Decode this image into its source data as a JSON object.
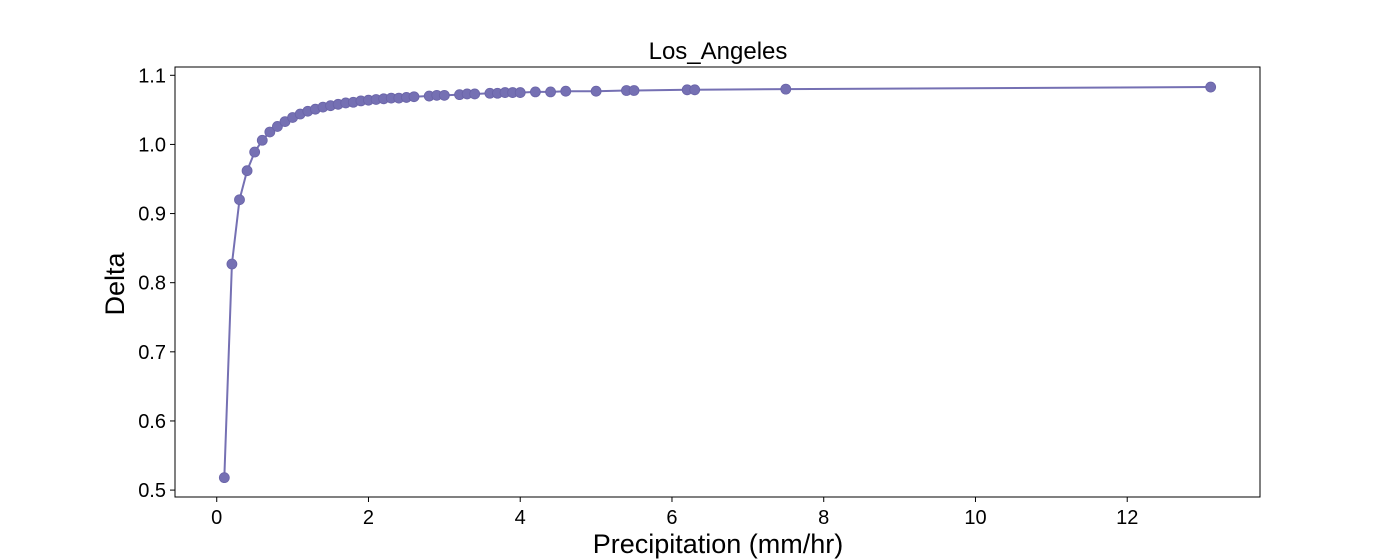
{
  "chart_data": {
    "type": "line",
    "title": "Los_Angeles",
    "xlabel": "Precipitation (mm/hr)",
    "ylabel": "Delta",
    "xlim": [
      -0.55,
      13.75
    ],
    "ylim": [
      0.49,
      1.112
    ],
    "xticks": [
      0,
      2,
      4,
      6,
      8,
      10,
      12
    ],
    "yticks": [
      0.5,
      0.6,
      0.7,
      0.8,
      0.9,
      1.0,
      1.1
    ],
    "ytick_labels": [
      "0.5",
      "0.6",
      "0.7",
      "0.8",
      "0.9",
      "1.0",
      "1.1"
    ],
    "grid": false,
    "color": "#7570b3",
    "series": [
      {
        "x": [
          0.1,
          0.2,
          0.3,
          0.4,
          0.5,
          0.6,
          0.7,
          0.8,
          0.9,
          1.0,
          1.1,
          1.2,
          1.3,
          1.4,
          1.5,
          1.6,
          1.7,
          1.8,
          1.9,
          2.0,
          2.1,
          2.2,
          2.3,
          2.4,
          2.5,
          2.6,
          2.8,
          2.9,
          3.0,
          3.2,
          3.3,
          3.4,
          3.6,
          3.7,
          3.8,
          3.9,
          4.0,
          4.2,
          4.4,
          4.6,
          5.0,
          5.4,
          5.5,
          6.2,
          6.3,
          7.5,
          13.1
        ],
        "y": [
          0.518,
          0.827,
          0.92,
          0.962,
          0.989,
          1.006,
          1.018,
          1.026,
          1.033,
          1.039,
          1.044,
          1.048,
          1.051,
          1.054,
          1.056,
          1.058,
          1.06,
          1.061,
          1.063,
          1.064,
          1.065,
          1.066,
          1.067,
          1.067,
          1.068,
          1.069,
          1.07,
          1.071,
          1.071,
          1.072,
          1.073,
          1.073,
          1.074,
          1.074,
          1.075,
          1.075,
          1.075,
          1.076,
          1.076,
          1.077,
          1.077,
          1.078,
          1.078,
          1.079,
          1.079,
          1.08,
          1.083
        ]
      }
    ]
  }
}
